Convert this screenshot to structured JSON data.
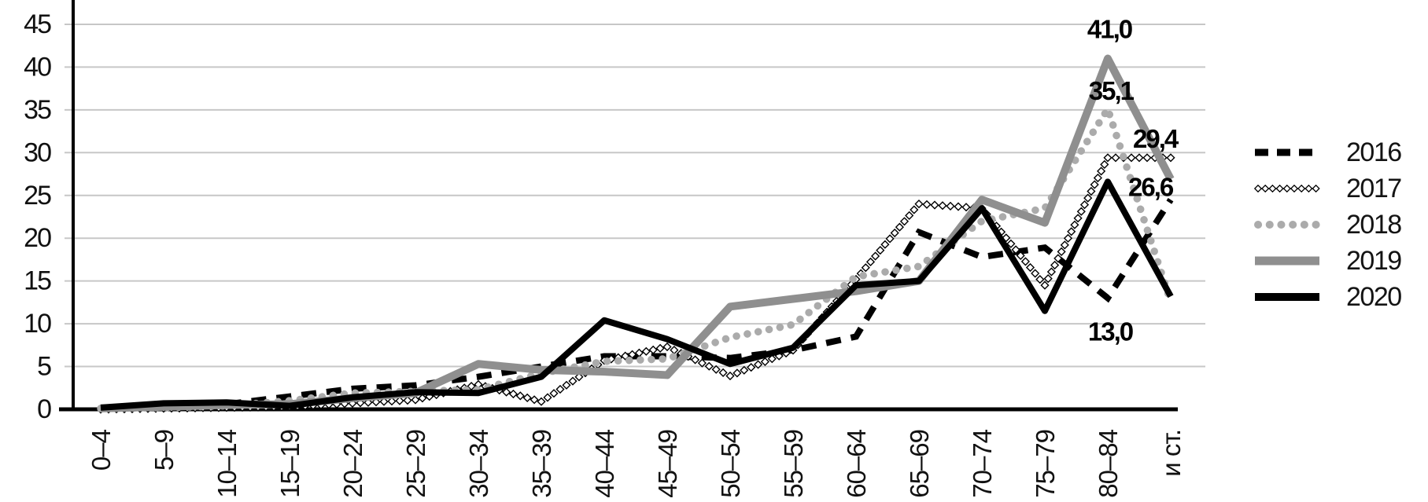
{
  "chart_data": {
    "type": "line",
    "title": "",
    "xlabel": "",
    "ylabel": "",
    "categories": [
      "0–4",
      "5–9",
      "10–14",
      "15–19",
      "20–24",
      "25–29",
      "30–34",
      "35–39",
      "40–44",
      "45–49",
      "50–54",
      "55–59",
      "60–64",
      "65–69",
      "70–74",
      "75–79",
      "80–84",
      "и ст."
    ],
    "series": [
      {
        "name": "2016",
        "style": "dashed-black",
        "color": "#000000",
        "values": [
          0.1,
          0.3,
          0.6,
          1.5,
          2.4,
          2.8,
          3.8,
          5.0,
          6.2,
          6.2,
          6.0,
          6.9,
          8.5,
          20.7,
          17.8,
          18.9,
          13.0,
          24.5
        ]
      },
      {
        "name": "2017",
        "style": "diamond-chain",
        "color": "#000000",
        "values": [
          0.0,
          0.1,
          0.2,
          0.3,
          0.7,
          1.1,
          2.9,
          0.9,
          5.7,
          7.3,
          3.9,
          6.9,
          15.2,
          24.0,
          23.5,
          14.5,
          29.4,
          29.4
        ]
      },
      {
        "name": "2018",
        "style": "dotted-gray",
        "color": "#ababab",
        "values": [
          0.1,
          0.2,
          0.4,
          1.0,
          1.9,
          2.1,
          2.3,
          4.2,
          5.6,
          5.9,
          8.4,
          9.9,
          15.5,
          16.7,
          22.0,
          23.5,
          35.1,
          12.6
        ]
      },
      {
        "name": "2019",
        "style": "solid-gray",
        "color": "#8f8f8f",
        "values": [
          0.1,
          0.3,
          0.5,
          0.6,
          1.3,
          1.9,
          5.3,
          4.6,
          4.4,
          4.0,
          12.0,
          12.9,
          13.8,
          15.0,
          24.5,
          21.8,
          41.0,
          26.9
        ]
      },
      {
        "name": "2020",
        "style": "solid-black",
        "color": "#000000",
        "values": [
          0.2,
          0.7,
          0.8,
          0.4,
          1.4,
          2.0,
          1.9,
          3.8,
          10.4,
          8.2,
          5.3,
          7.2,
          14.5,
          15.0,
          23.5,
          11.5,
          26.6,
          13.2
        ]
      }
    ],
    "ylim": [
      0,
      45
    ],
    "ytick_step": 5,
    "yticks": [
      "0",
      "5",
      "10",
      "15",
      "20",
      "25",
      "30",
      "35",
      "40",
      "45"
    ],
    "grid": true,
    "legend_position": "right",
    "annotations": [
      {
        "text": "41,0",
        "series": "2019",
        "category": "80–84",
        "value": 41.0
      },
      {
        "text": "35,1",
        "series": "2018",
        "category": "80–84",
        "value": 35.1
      },
      {
        "text": "29,4",
        "series": "2017",
        "category": "80–84",
        "value": 29.4
      },
      {
        "text": "26,6",
        "series": "2020",
        "category": "80–84",
        "value": 26.6
      },
      {
        "text": "13,0",
        "series": "2016",
        "category": "80–84",
        "value": 13.0
      }
    ]
  },
  "colors": {
    "grid": "#c7c7c7",
    "axis": "#000000",
    "text": "#111111",
    "gray_line": "#8f8f8f",
    "gray_dots": "#ababab"
  }
}
